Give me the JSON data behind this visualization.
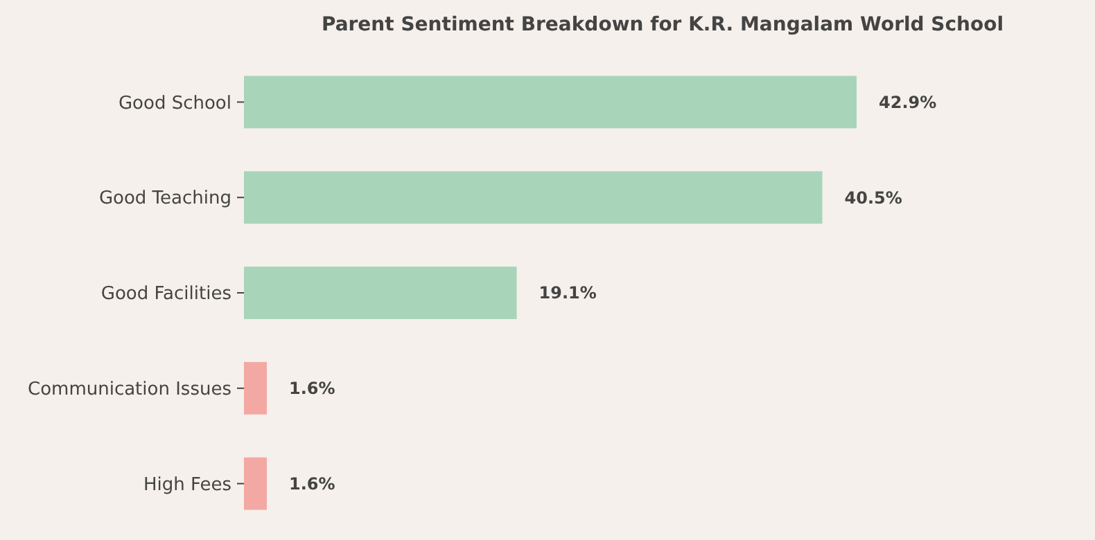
{
  "chart_data": {
    "type": "bar",
    "orientation": "horizontal",
    "title": "Parent Sentiment Breakdown for K.R. Mangalam World School",
    "categories": [
      "Good School",
      "Good Teaching",
      "Good Facilities",
      "Communication Issues",
      "High Fees"
    ],
    "values": [
      42.9,
      40.5,
      19.1,
      1.6,
      1.6
    ],
    "colors": [
      "#a8d5b9",
      "#a8d5b9",
      "#a8d5b9",
      "#f4a8a4",
      "#f4a8a4"
    ],
    "value_labels": [
      "42.9%",
      "40.5%",
      "19.1%",
      "1.6%",
      "1.6%"
    ]
  }
}
